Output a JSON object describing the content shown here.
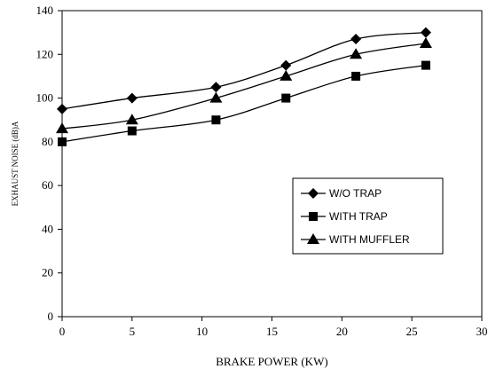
{
  "chart_data": {
    "type": "line",
    "title": "",
    "xlabel": "BRAKE  POWER (KW)",
    "ylabel": "EXHAUST  NOISE (dB)A",
    "xlim": [
      0,
      30
    ],
    "ylim": [
      0,
      140
    ],
    "xticks": [
      0,
      5,
      10,
      15,
      20,
      25,
      30
    ],
    "yticks": [
      0,
      20,
      40,
      60,
      80,
      100,
      120,
      140
    ],
    "grid": false,
    "legend_position": "center-right",
    "series": [
      {
        "name": "W/O TRAP",
        "marker": "diamond",
        "x": [
          0,
          5,
          11,
          16,
          21,
          26
        ],
        "y": [
          95,
          100,
          105,
          115,
          127,
          130
        ]
      },
      {
        "name": "WITH TRAP",
        "marker": "square",
        "x": [
          0,
          5,
          11,
          16,
          21,
          26
        ],
        "y": [
          80,
          85,
          90,
          100,
          110,
          115
        ]
      },
      {
        "name": "WITH MUFFLER",
        "marker": "triangle",
        "x": [
          0,
          5,
          11,
          16,
          21,
          26
        ],
        "y": [
          86,
          90,
          100,
          110,
          120,
          125
        ]
      }
    ]
  }
}
